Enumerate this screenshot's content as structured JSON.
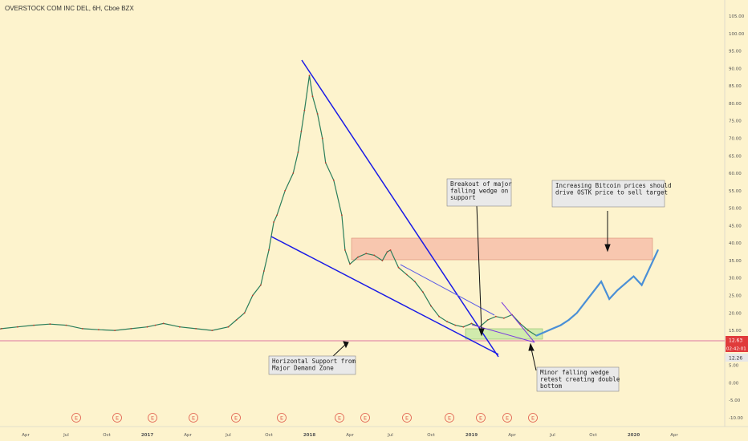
{
  "header": {
    "title": "OVERSTOCK COM INC DEL, 6H, Cboe BZX"
  },
  "chart_data": {
    "type": "line",
    "title": "OVERSTOCK COM INC DEL, 6H, Cboe BZX",
    "xlabel": "",
    "ylabel": "",
    "ylim": [
      -12,
      108
    ],
    "y_ticks": [
      "105.00",
      "100.00",
      "95.00",
      "90.00",
      "85.00",
      "80.00",
      "75.00",
      "70.00",
      "65.00",
      "60.00",
      "55.00",
      "50.00",
      "45.00",
      "40.00",
      "35.00",
      "30.00",
      "25.00",
      "20.00",
      "15.00",
      "10.00",
      "5.00",
      "0.00",
      "-5.00",
      "-10.00"
    ],
    "x_ticks": [
      "Apr",
      "Jul",
      "Oct",
      "2017",
      "Apr",
      "Jul",
      "Oct",
      "2018",
      "Apr",
      "Jul",
      "Oct",
      "2019",
      "Apr",
      "Jul",
      "Oct",
      "2020",
      "Apr"
    ],
    "x_tick_values": [
      2016.25,
      2016.5,
      2016.75,
      2017.0,
      2017.25,
      2017.5,
      2017.75,
      2018.0,
      2018.25,
      2018.5,
      2018.75,
      2019.0,
      2019.25,
      2019.5,
      2019.75,
      2020.0,
      2020.25
    ],
    "price_labels": {
      "last": "12.63",
      "countdown": "02:42:01",
      "support": "12.26"
    },
    "series": [
      {
        "x": [
          2016.0,
          2016.1,
          2016.2,
          2016.3,
          2016.4,
          2016.5,
          2016.6,
          2016.7,
          2016.8,
          2016.9,
          2017.0,
          2017.05,
          2017.1,
          2017.2,
          2017.3,
          2017.4,
          2017.5,
          2017.55,
          2017.6,
          2017.65,
          2017.7,
          2017.72,
          2017.75,
          2017.78,
          2017.8,
          2017.85,
          2017.9,
          2017.93,
          2017.95,
          2017.97,
          2018.0,
          2018.02,
          2018.05,
          2018.08,
          2018.1,
          2018.15,
          2018.2,
          2018.22,
          2018.25,
          2018.3,
          2018.35,
          2018.4,
          2018.45,
          2018.48,
          2018.5,
          2018.55,
          2018.6,
          2018.65,
          2018.7,
          2018.75,
          2018.8,
          2018.85,
          2018.9,
          2018.95,
          2019.0,
          2019.05,
          2019.1,
          2019.15,
          2019.2,
          2019.25,
          2019.3,
          2019.35,
          2019.4
        ],
        "values": [
          14.5,
          15.5,
          16.0,
          16.5,
          16.8,
          16.5,
          15.5,
          15.2,
          15.0,
          15.5,
          16.0,
          16.5,
          17.0,
          16.0,
          15.5,
          15.0,
          16.0,
          18.0,
          20.0,
          25.0,
          28.0,
          32.0,
          38.0,
          46.0,
          48.0,
          55.0,
          60.0,
          66.0,
          72.0,
          78.0,
          88.0,
          82.0,
          77.0,
          70.0,
          63.0,
          58.0,
          48.0,
          38.0,
          34.0,
          36.0,
          37.0,
          36.5,
          35.0,
          37.5,
          38.0,
          33.0,
          31.0,
          29.0,
          26.0,
          22.0,
          19.0,
          17.5,
          16.5,
          16.0,
          17.0,
          16.0,
          18.0,
          19.0,
          18.5,
          19.5,
          17.0,
          15.0,
          13.5
        ]
      },
      {
        "x": [
          2019.4,
          2019.45,
          2019.5,
          2019.55,
          2019.6,
          2019.65,
          2019.7,
          2019.75,
          2019.8,
          2019.85,
          2019.9,
          2019.95,
          2020.0,
          2020.05,
          2020.1,
          2020.15
        ],
        "values": [
          13.5,
          14.5,
          15.5,
          16.5,
          18.0,
          20.0,
          23.0,
          26.0,
          29.0,
          24.0,
          26.5,
          28.5,
          30.5,
          28.0,
          33.0,
          38.0
        ]
      }
    ],
    "annotations": {
      "breakout": "Breakout of major falling wedge on support",
      "bitcoin": "Increasing Bitcoin prices should drive OSTK price to sell target",
      "horizontal": "Horizontal Support from Major Demand Zone",
      "minor": "Minor falling wedge retest creating double bottom"
    },
    "earnings_marker": "E",
    "grid": false,
    "colors": {
      "background": "#fdf3cd",
      "wedge_lines": "#1a1ae6",
      "resistance_zone": "#f5b8a4",
      "support_zone": "#c5e8a5",
      "support_line": "#e8a0b0",
      "projection": "#4a8fd6",
      "last_price_tag": "#e03b3b"
    }
  }
}
